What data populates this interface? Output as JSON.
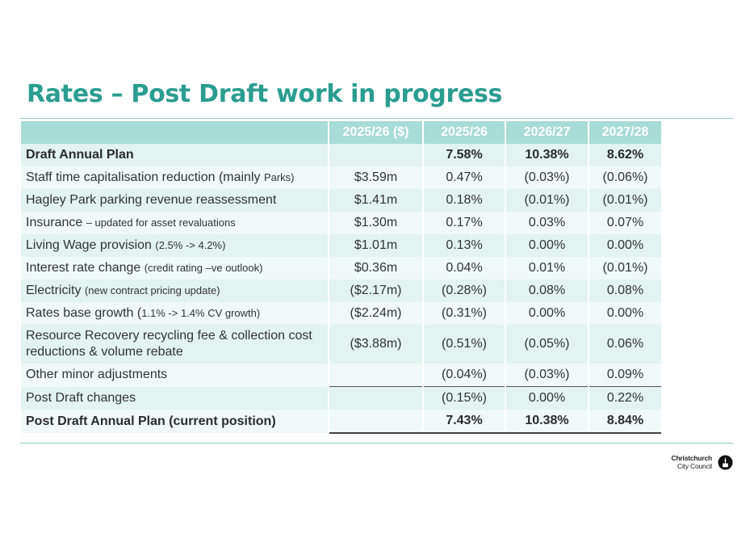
{
  "title": "Rates – Post Draft work in progress",
  "table": {
    "headers": [
      "",
      "2025/26 ($)",
      "2025/26",
      "2026/27",
      "2027/28"
    ],
    "rows": [
      {
        "label": "Draft Annual Plan",
        "note": "",
        "amount": "",
        "y1": "7.58%",
        "y2": "10.38%",
        "y3": "8.62%"
      },
      {
        "label": "Staff time capitalisation reduction (mainly ",
        "note": "Parks)",
        "amount": "$3.59m",
        "y1": "0.47%",
        "y2": "(0.03%)",
        "y3": "(0.06%)"
      },
      {
        "label": "Hagley Park parking revenue reassessment",
        "note": "",
        "amount": "$1.41m",
        "y1": "0.18%",
        "y2": "(0.01%)",
        "y3": "(0.01%)"
      },
      {
        "label": "Insurance ",
        "note": "– updated for asset revaluations",
        "amount": "$1.30m",
        "y1": "0.17%",
        "y2": "0.03%",
        "y3": "0.07%"
      },
      {
        "label": "Living Wage provision ",
        "note": "(2.5% -> 4.2%)",
        "amount": "$1.01m",
        "y1": "0.13%",
        "y2": "0.00%",
        "y3": "0.00%"
      },
      {
        "label": "Interest rate change ",
        "note": "(credit rating –ve outlook)",
        "amount": "$0.36m",
        "y1": "0.04%",
        "y2": "0.01%",
        "y3": "(0.01%)"
      },
      {
        "label": "Electricity ",
        "note": "(new contract pricing update)",
        "amount": "($2.17m)",
        "y1": "(0.28%)",
        "y2": "0.08%",
        "y3": "0.08%"
      },
      {
        "label": "Rates base growth (",
        "note": "1.1% -> 1.4% CV growth)",
        "amount": "($2.24m)",
        "y1": "(0.31%)",
        "y2": "0.00%",
        "y3": "0.00%"
      },
      {
        "label": "Resource Recovery recycling fee & collection cost reductions & volume rebate",
        "note": "",
        "amount": "($3.88m)",
        "y1": "(0.51%)",
        "y2": "(0.05%)",
        "y3": "0.06%"
      },
      {
        "label": "Other minor adjustments",
        "note": "",
        "amount": "",
        "y1": "(0.04%)",
        "y2": "(0.03%)",
        "y3": "0.09%"
      },
      {
        "label": "Post Draft changes",
        "note": "",
        "amount": "",
        "y1": "(0.15%)",
        "y2": "0.00%",
        "y3": "0.22%"
      },
      {
        "label": "Post Draft Annual Plan (current position)",
        "note": "",
        "amount": "",
        "y1": "7.43%",
        "y2": "10.38%",
        "y3": "8.84%"
      }
    ]
  },
  "logo": {
    "line1": "Christchurch",
    "line2": "City Council"
  },
  "colors": {
    "accent": "#2a9d8f",
    "header": "#a8dcd6",
    "row_a": "#e2f3f1",
    "row_b": "#f0f9f8"
  }
}
